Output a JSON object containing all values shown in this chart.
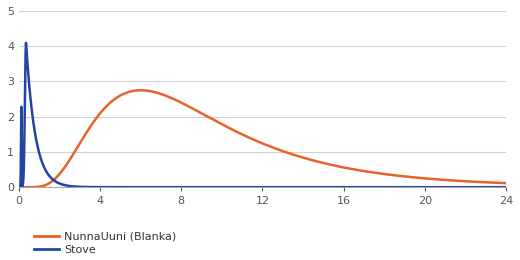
{
  "title": "",
  "xlabel": "",
  "ylabel": "",
  "xlim": [
    0,
    24
  ],
  "ylim": [
    0,
    5
  ],
  "xticks": [
    0,
    4,
    8,
    12,
    16,
    20,
    24
  ],
  "yticks": [
    0,
    1,
    2,
    3,
    4,
    5
  ],
  "grid_color": "#d0d0d0",
  "background_color": "#ffffff",
  "nunna_color": "#E8622A",
  "stove_color": "#2145A0",
  "legend_labels": [
    "NunnaUuni (Blanka)",
    "Stove"
  ],
  "line_width": 1.8
}
